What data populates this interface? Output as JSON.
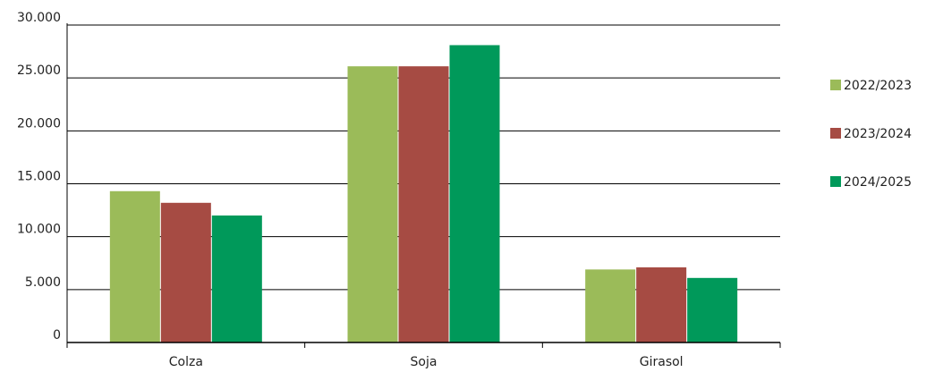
{
  "chart_data": {
    "type": "bar",
    "title": "",
    "xlabel": "",
    "ylabel": "",
    "categories": [
      "Colza",
      "Soja",
      "Girasol"
    ],
    "series": [
      {
        "name": "2022/2023",
        "color": "#9bbb59",
        "values": [
          14300,
          26100,
          6900
        ]
      },
      {
        "name": "2023/2024",
        "color": "#a64b43",
        "values": [
          13200,
          26100,
          7100
        ]
      },
      {
        "name": "2024/2025",
        "color": "#00995a",
        "values": [
          12000,
          28100,
          6100
        ]
      }
    ],
    "ylim": [
      0,
      30000
    ],
    "yticks": [
      0,
      5000,
      10000,
      15000,
      20000,
      25000,
      30000
    ],
    "ytick_labels": [
      "0",
      "5.000",
      "10.000",
      "15.000",
      "20.000",
      "25.000",
      "30.000"
    ],
    "grid": "horizontal",
    "legend_position": "right"
  }
}
